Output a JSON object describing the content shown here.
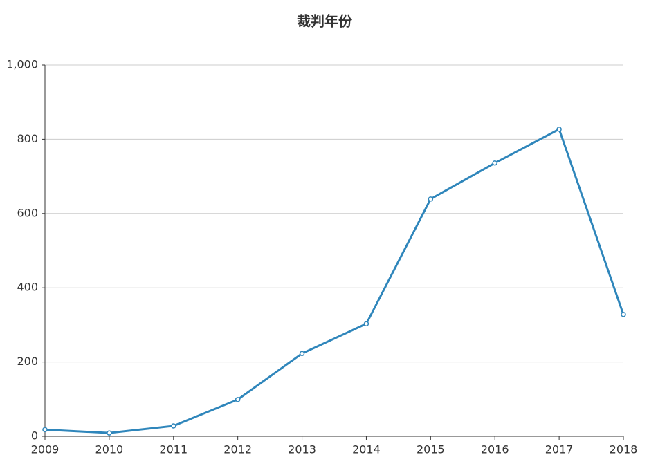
{
  "chart_data": {
    "type": "line",
    "title": "裁判年份",
    "x": [
      2009,
      2010,
      2011,
      2012,
      2013,
      2014,
      2015,
      2016,
      2017,
      2018
    ],
    "xlim": [
      2009,
      2018
    ],
    "xticks": [
      2009,
      2010,
      2011,
      2012,
      2013,
      2014,
      2015,
      2016,
      2017,
      2018
    ],
    "series": [
      {
        "color": "#2f86bb",
        "values": [
          18,
          9,
          28,
          99,
          223,
          303,
          639,
          736,
          827,
          328
        ]
      }
    ],
    "ylim": [
      0,
      1000
    ],
    "yticks": [
      0,
      200,
      400,
      600,
      800,
      {
        "value": 1000,
        "label": "1,000"
      }
    ],
    "grid": true
  }
}
